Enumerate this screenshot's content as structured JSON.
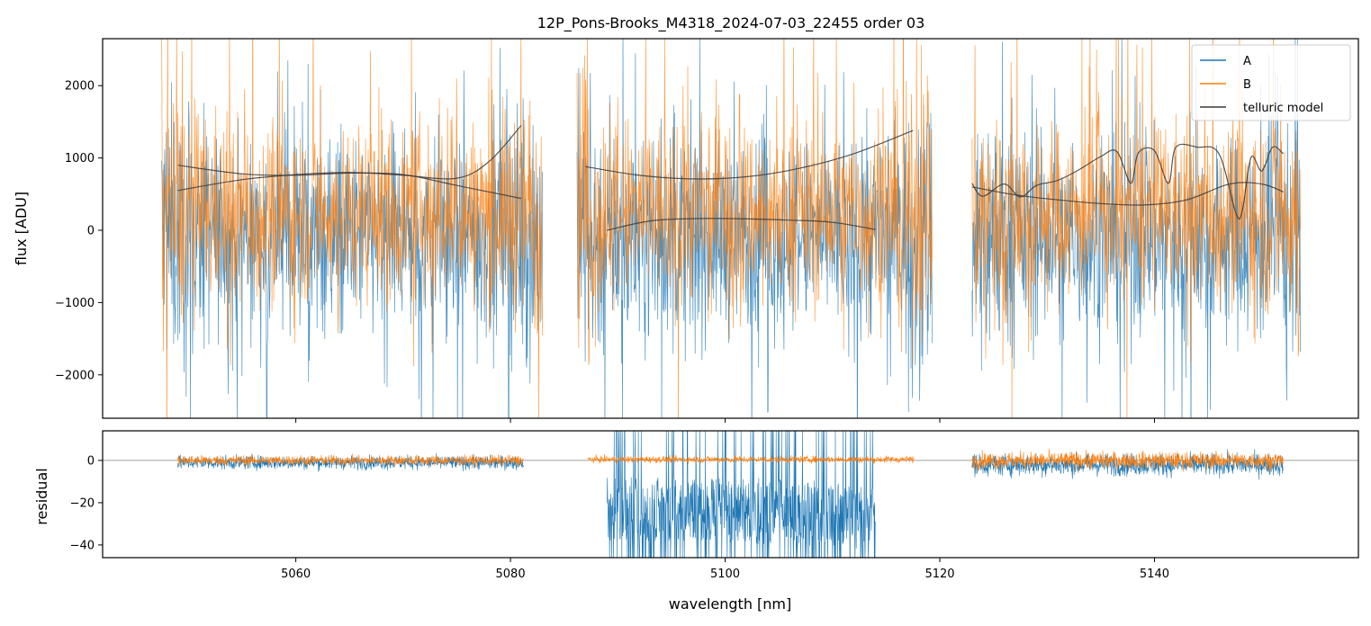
{
  "chart_data": [
    {
      "type": "line",
      "panel": "spectrum",
      "title": "12P_Pons-Brooks_M4318_2024-07-03_22455  order 03",
      "xlabel": "",
      "ylabel": "flux [ADU]",
      "xlim": [
        5042,
        5159
      ],
      "ylim": [
        -2600,
        2650
      ],
      "yticks": [
        -2000,
        -1000,
        0,
        1000,
        2000
      ],
      "ytick_labels": [
        "−2000",
        "−1000",
        "0",
        "1000",
        "2000"
      ],
      "xticks": [
        5060,
        5080,
        5100,
        5120,
        5140
      ],
      "legend_position": "top-right",
      "segments": [
        [
          5047.5,
          5083.0
        ],
        [
          5086.2,
          5119.3
        ],
        [
          5123.0,
          5153.6
        ]
      ],
      "series": [
        {
          "name": "A",
          "color": "#1f77b4",
          "kind": "noisy spectrum",
          "center": 0,
          "band_high": 1000,
          "band_low": -1300
        },
        {
          "name": "B",
          "color": "#ff7f0e",
          "kind": "noisy spectrum",
          "center": 300,
          "band_high": 1800,
          "band_low": -800
        },
        {
          "name": "telluric model",
          "color": "#3a3a3a",
          "kind": "smooth model curves",
          "curves": [
            {
              "x": [
                5049,
                5055,
                5060,
                5065,
                5070,
                5075,
                5081
              ],
              "y": [
                900,
                780,
                760,
                790,
                770,
                620,
                440
              ]
            },
            {
              "x": [
                5049,
                5055,
                5060,
                5065,
                5070,
                5075,
                5078,
                5081
              ],
              "y": [
                550,
                700,
                770,
                800,
                760,
                720,
                950,
                1450
              ]
            },
            {
              "x": [
                5087,
                5092,
                5097,
                5102,
                5107,
                5112,
                5117.5
              ],
              "y": [
                880,
                760,
                710,
                740,
                860,
                1060,
                1380
              ]
            },
            {
              "x": [
                5089,
                5093,
                5097,
                5101,
                5106,
                5110,
                5114
              ],
              "y": [
                0,
                130,
                160,
                160,
                140,
                110,
                10
              ]
            },
            {
              "x": [
                5123,
                5127,
                5131,
                5135,
                5139,
                5143,
                5147,
                5150,
                5152
              ],
              "y": [
                600,
                490,
                420,
                370,
                350,
                420,
                640,
                640,
                530
              ]
            },
            {
              "x": [
                5123,
                5124,
                5126,
                5127.5,
                5129,
                5131,
                5133,
                5135,
                5136.5,
                5137.8,
                5138.5,
                5140,
                5141.3,
                5142,
                5144,
                5146,
                5147.6,
                5148.2,
                5149,
                5150,
                5151,
                5152
              ],
              "y": [
                650,
                470,
                640,
                460,
                620,
                690,
                840,
                1020,
                1090,
                650,
                1070,
                1100,
                650,
                1150,
                1150,
                1060,
                230,
                280,
                1010,
                820,
                1150,
                1060
              ]
            }
          ]
        }
      ]
    },
    {
      "type": "line",
      "panel": "residual",
      "title": "",
      "xlabel": "wavelength [nm]",
      "ylabel": "residual",
      "xlim": [
        5042,
        5159
      ],
      "ylim": [
        -46,
        14
      ],
      "yticks": [
        -40,
        -20,
        0
      ],
      "ytick_labels": [
        "−40",
        "−20",
        "0"
      ],
      "xticks": [
        5060,
        5080,
        5100,
        5120,
        5140
      ],
      "xtick_labels": [
        "5060",
        "5080",
        "5100",
        "5120",
        "5140"
      ],
      "hline": 0,
      "segments": [
        [
          5049,
          5081.2
        ],
        [
          5087.2,
          5117.6
        ],
        [
          5123,
          5152
        ]
      ],
      "series": [
        {
          "name": "A",
          "color": "#1f77b4",
          "kind": "residual noise",
          "notes": "large negative excursions down to about -46 between 5089 and 5114"
        },
        {
          "name": "B",
          "color": "#ff7f0e",
          "kind": "residual noise",
          "notes": "scatter within about +/-5 around 0"
        }
      ]
    }
  ]
}
